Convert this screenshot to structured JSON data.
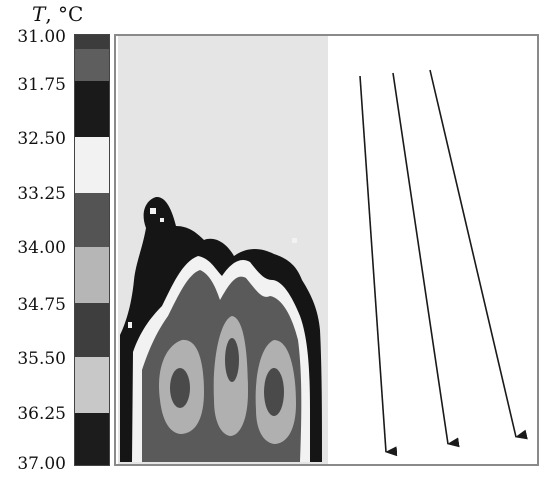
{
  "axis": {
    "symbol": "T",
    "unit": ", °C"
  },
  "scale": {
    "ticks": [
      "31.00",
      "31.75",
      "32.50",
      "33.25",
      "34.00",
      "34.75",
      "35.50",
      "36.25",
      "37.00"
    ],
    "colors": [
      "#3c3c3c",
      "#5e5e5e",
      "#1a1a1a",
      "#f2f2f2",
      "#545454",
      "#b6b6b6",
      "#3e3e3e",
      "#c8c8c8",
      "#1c1c1c"
    ]
  },
  "thermogram": {
    "background": "#e5e5e5",
    "iso_colors": [
      "#151515",
      "#f2f2f2",
      "#5a5a5a",
      "#b0b0b0",
      "#4a4a4a"
    ]
  },
  "arrows": {
    "count": 3,
    "color": "#1a1a1a"
  }
}
